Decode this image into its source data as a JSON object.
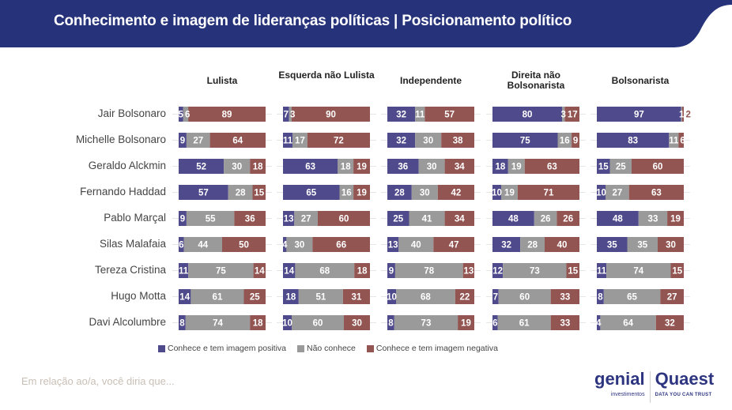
{
  "header": {
    "title": "Conhecimento e imagem de lideranças políticas | Posicionamento político",
    "bg_color": "#26337a"
  },
  "footer": {
    "note": "Em relação ao/a, você diria que...",
    "logo_genial": "genial",
    "logo_genial_sub": "investimentos",
    "logo_quaest": "Quaest",
    "logo_quaest_sub": "DATA YOU CAN TRUST"
  },
  "chart_data": {
    "type": "bar",
    "stacked": true,
    "orientation": "horizontal",
    "units": "%",
    "legend_position": "bottom",
    "categories": [
      "Jair Bolsonaro",
      "Michelle Bolsonaro",
      "Geraldo Alckmin",
      "Fernando Haddad",
      "Pablo Marçal",
      "Silas Malafaia",
      "Tereza Cristina",
      "Hugo Motta",
      "Davi Alcolumbre"
    ],
    "series_names": [
      "Conhece e tem imagem positiva",
      "Não conhece",
      "Conhece e tem imagem negativa"
    ],
    "colors": [
      "#4f4a8c",
      "#9a9a9a",
      "#935552"
    ],
    "panels": [
      {
        "title": "Lulista",
        "values": [
          [
            5,
            6,
            89
          ],
          [
            9,
            27,
            64
          ],
          [
            52,
            30,
            18
          ],
          [
            57,
            28,
            15
          ],
          [
            9,
            55,
            36
          ],
          [
            6,
            44,
            50
          ],
          [
            11,
            75,
            14
          ],
          [
            14,
            61,
            25
          ],
          [
            8,
            74,
            18
          ]
        ]
      },
      {
        "title": "Esquerda não Lulista",
        "values": [
          [
            7,
            3,
            90
          ],
          [
            11,
            17,
            72
          ],
          [
            63,
            18,
            19
          ],
          [
            65,
            16,
            19
          ],
          [
            13,
            27,
            60
          ],
          [
            4,
            30,
            66
          ],
          [
            14,
            68,
            18
          ],
          [
            18,
            51,
            31
          ],
          [
            10,
            60,
            30
          ]
        ]
      },
      {
        "title": "Independente",
        "values": [
          [
            32,
            11,
            57
          ],
          [
            32,
            30,
            38
          ],
          [
            36,
            30,
            34
          ],
          [
            28,
            30,
            42
          ],
          [
            25,
            41,
            34
          ],
          [
            13,
            40,
            47
          ],
          [
            9,
            78,
            13
          ],
          [
            10,
            68,
            22
          ],
          [
            8,
            73,
            19
          ]
        ]
      },
      {
        "title": "Direita não Bolsonarista",
        "values": [
          [
            80,
            3,
            17
          ],
          [
            75,
            16,
            9
          ],
          [
            18,
            19,
            63
          ],
          [
            10,
            19,
            71
          ],
          [
            48,
            26,
            26
          ],
          [
            32,
            28,
            40
          ],
          [
            12,
            73,
            15
          ],
          [
            7,
            60,
            33
          ],
          [
            6,
            61,
            33
          ]
        ]
      },
      {
        "title": "Bolsonarista",
        "values": [
          [
            97,
            1,
            2
          ],
          [
            83,
            11,
            6
          ],
          [
            15,
            25,
            60
          ],
          [
            10,
            27,
            63
          ],
          [
            48,
            33,
            19
          ],
          [
            35,
            35,
            30
          ],
          [
            11,
            74,
            15
          ],
          [
            8,
            65,
            27
          ],
          [
            4,
            64,
            32
          ]
        ]
      }
    ]
  }
}
